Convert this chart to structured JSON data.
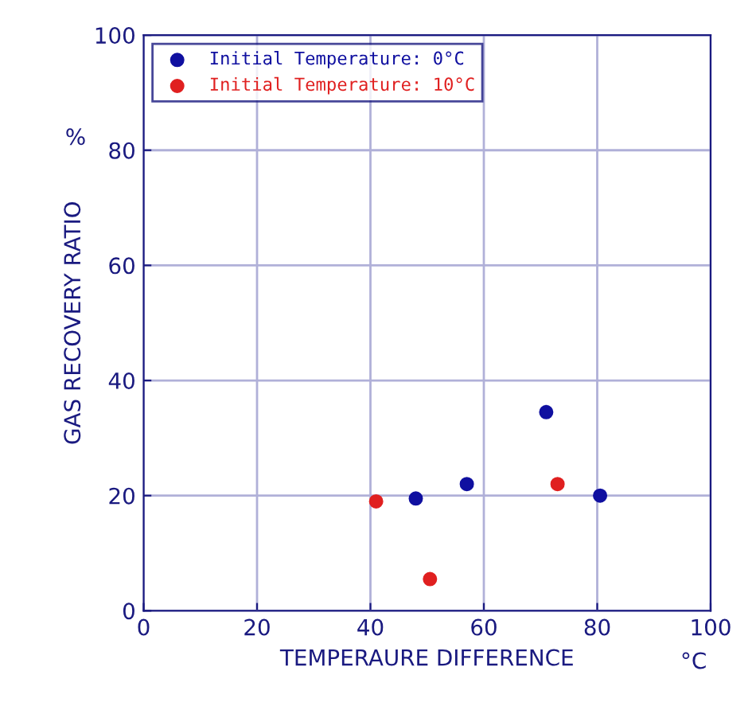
{
  "chart_data": {
    "type": "scatter",
    "xlabel": "TEMPERAURE DIFFERENCE",
    "ylabel": "GAS RECOVERY RATIO",
    "annotations": [
      "%",
      "°C"
    ],
    "series": [
      {
        "name": "Initial Temperature: 0°C",
        "color": "#1010a0",
        "x": [
          48,
          57,
          71,
          80.5
        ],
        "values": [
          19.5,
          22,
          34.5,
          20
        ]
      },
      {
        "name": "Initial Temperature: 10°C",
        "color": "#e02020",
        "x": [
          41,
          50.5,
          73
        ],
        "values": [
          19,
          5.5,
          22
        ]
      }
    ],
    "xlim": [
      0,
      100
    ],
    "ylim": [
      0,
      100
    ],
    "xticks": [
      0,
      20,
      40,
      60,
      80,
      100
    ],
    "yticks": [
      0,
      20,
      40,
      60,
      80,
      100
    ],
    "grid": true,
    "legend": "top left",
    "marker": "circle"
  }
}
